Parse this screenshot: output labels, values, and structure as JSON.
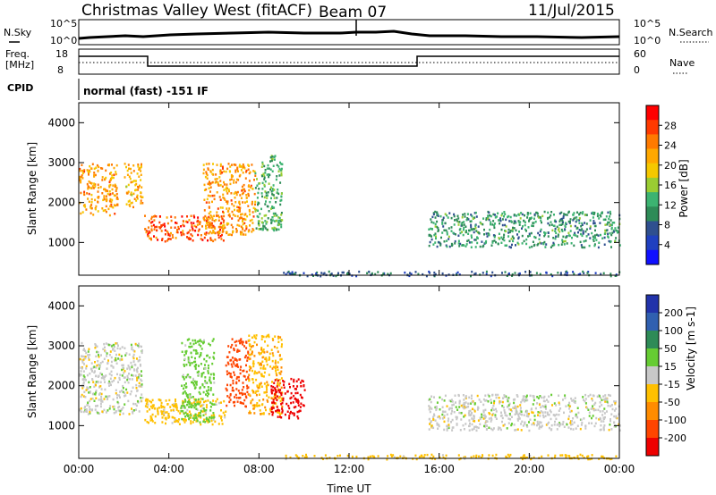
{
  "header": {
    "station": "Christmas Valley West (fitACF)",
    "beam": "Beam 07",
    "date": "11/Jul/2015"
  },
  "panels": {
    "nsky_label": "N.Sky",
    "nsearch_label": "N.Search",
    "freq_label_line1": "Freq.",
    "freq_label_line2": "[MHz]",
    "nave_label": "Nave",
    "cpid_label": "CPID",
    "cpid_value": "normal (fast) -151 IF",
    "nsky_ticks": [
      "10^5",
      "10^0"
    ],
    "nsearch_ticks": [
      "10^5",
      "10^0"
    ],
    "freq_ticks": [
      "18",
      "8"
    ],
    "nave_ticks": [
      "60",
      "0"
    ]
  },
  "power_colorbar": {
    "label": "Power [dB]",
    "ticks": [
      "28",
      "24",
      "20",
      "16",
      "12",
      "8",
      "4"
    ],
    "colors": [
      "#ff0000",
      "#ff3a00",
      "#ff7a00",
      "#ffa800",
      "#f5c800",
      "#9acd32",
      "#3cb371",
      "#2e8b57",
      "#2f4f8f",
      "#2040c0",
      "#1010ff"
    ]
  },
  "velocity_colorbar": {
    "label": "Velocity [m s-1]",
    "ticks": [
      "200",
      "100",
      "50",
      "15",
      "-15",
      "-50",
      "-100",
      "-200"
    ],
    "colors": [
      "#2233aa",
      "#3060b0",
      "#2e8b57",
      "#66cc33",
      "#c8c8c8",
      "#ffc000",
      "#ff8c00",
      "#ff4500",
      "#ee0000"
    ]
  },
  "chart_data": [
    {
      "type": "heatmap",
      "title": "Christmas Valley West (fitACF) Beam 07 11/Jul/2015",
      "xlabel": "",
      "ylabel": "Slant Range [km]",
      "xlim": [
        "00:00",
        "24:00"
      ],
      "ylim": [
        180,
        4500
      ],
      "yticks": [
        1000,
        2000,
        3000,
        4000
      ],
      "colorbar": "Power [dB]",
      "regions": [
        {
          "from": 0.0,
          "to": 1.7,
          "range_km": [
            1700,
            3000
          ],
          "value_db": 22
        },
        {
          "from": 2.0,
          "to": 2.8,
          "range_km": [
            1900,
            3000
          ],
          "value_db": 20
        },
        {
          "from": 2.9,
          "to": 6.5,
          "range_km": [
            1050,
            1700
          ],
          "value_db": 26
        },
        {
          "from": 5.5,
          "to": 7.8,
          "range_km": [
            1200,
            3000
          ],
          "value_db": 22
        },
        {
          "from": 7.8,
          "to": 9.0,
          "range_km": [
            1300,
            3200
          ],
          "value_db": 12
        },
        {
          "from": 15.5,
          "to": 24.0,
          "range_km": [
            900,
            1800
          ],
          "value_db": 10
        },
        {
          "from": 9.0,
          "to": 24.0,
          "range_km": [
            180,
            300
          ],
          "value_db": 6
        }
      ]
    },
    {
      "type": "heatmap",
      "xlabel": "Time UT",
      "ylabel": "Slant Range [km]",
      "xlim": [
        "00:00",
        "24:00"
      ],
      "xticks": [
        "00:00",
        "04:00",
        "08:00",
        "12:00",
        "16:00",
        "20:00",
        "00:00"
      ],
      "ylim": [
        180,
        4500
      ],
      "yticks": [
        1000,
        2000,
        3000,
        4000
      ],
      "colorbar": "Velocity [m s-1]",
      "regions": [
        {
          "from": 0.0,
          "to": 2.8,
          "range_km": [
            1300,
            3100
          ],
          "value_ms": 0
        },
        {
          "from": 2.9,
          "to": 6.5,
          "range_km": [
            1050,
            1700
          ],
          "value_ms": -30
        },
        {
          "from": 4.5,
          "to": 6.0,
          "range_km": [
            1100,
            3200
          ],
          "value_ms": 30
        },
        {
          "from": 6.5,
          "to": 7.5,
          "range_km": [
            1500,
            3200
          ],
          "value_ms": -150
        },
        {
          "from": 7.5,
          "to": 9.0,
          "range_km": [
            1300,
            3300
          ],
          "value_ms": -40
        },
        {
          "from": 8.5,
          "to": 10.0,
          "range_km": [
            1200,
            2200
          ],
          "value_ms": -220
        },
        {
          "from": 15.5,
          "to": 24.0,
          "range_km": [
            900,
            1800
          ],
          "value_ms": 0
        },
        {
          "from": 9.0,
          "to": 24.0,
          "range_km": [
            180,
            300
          ],
          "value_ms": -30
        }
      ]
    }
  ]
}
